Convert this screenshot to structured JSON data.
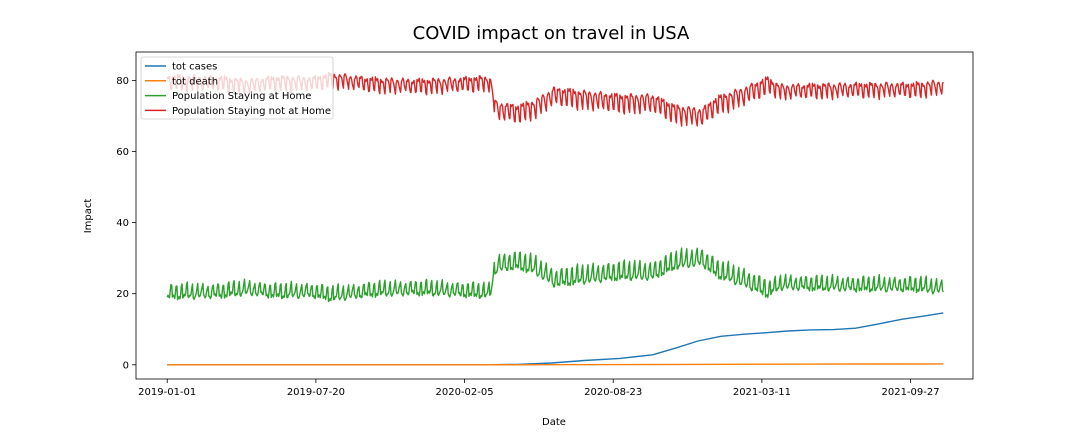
{
  "chart_data": {
    "type": "line",
    "title": "COVID impact on travel in USA",
    "xlabel": "Date",
    "ylabel": "Impact",
    "x_range": [
      "2019-01-01",
      "2021-11-10"
    ],
    "xlim": [
      "2018-11-20",
      "2021-12-20"
    ],
    "ylim": [
      -4,
      88
    ],
    "x_ticks": [
      "2019-01-01",
      "2019-07-20",
      "2020-02-05",
      "2020-08-23",
      "2021-03-11",
      "2021-09-27"
    ],
    "y_ticks": [
      0,
      20,
      40,
      60,
      80
    ],
    "grid": false,
    "legend_position": "top-left",
    "series": [
      {
        "name": "tot cases",
        "color": "#1f77b4",
        "points": [
          [
            "2019-01-01",
            0
          ],
          [
            "2020-03-01",
            0
          ],
          [
            "2020-04-15",
            0.1
          ],
          [
            "2020-06-01",
            0.5
          ],
          [
            "2020-07-15",
            1.2
          ],
          [
            "2020-09-01",
            1.8
          ],
          [
            "2020-10-15",
            2.8
          ],
          [
            "2020-11-15",
            4.7
          ],
          [
            "2020-12-15",
            6.7
          ],
          [
            "2021-01-15",
            8.0
          ],
          [
            "2021-02-15",
            8.6
          ],
          [
            "2021-03-15",
            9.0
          ],
          [
            "2021-04-15",
            9.5
          ],
          [
            "2021-05-15",
            9.8
          ],
          [
            "2021-06-15",
            9.9
          ],
          [
            "2021-07-15",
            10.3
          ],
          [
            "2021-08-15",
            11.5
          ],
          [
            "2021-09-15",
            12.8
          ],
          [
            "2021-10-15",
            13.7
          ],
          [
            "2021-11-10",
            14.6
          ]
        ]
      },
      {
        "name": "tot death",
        "color": "#ff7f0e",
        "points": [
          [
            "2019-01-01",
            0
          ],
          [
            "2020-03-01",
            0
          ],
          [
            "2020-06-01",
            0.02
          ],
          [
            "2020-12-01",
            0.1
          ],
          [
            "2021-06-01",
            0.2
          ],
          [
            "2021-11-10",
            0.25
          ]
        ]
      },
      {
        "name": "Population Staying at Home",
        "color": "#2ca02c",
        "base": [
          [
            "2019-01-01",
            19.8
          ],
          [
            "2019-03-15",
            20.2
          ],
          [
            "2019-04-20",
            21.0
          ],
          [
            "2019-06-01",
            20.0
          ],
          [
            "2019-07-15",
            20.3
          ],
          [
            "2019-08-10",
            19.2
          ],
          [
            "2019-10-01",
            20.5
          ],
          [
            "2019-12-01",
            21.0
          ],
          [
            "2020-02-01",
            20.5
          ],
          [
            "2020-03-10",
            20.0
          ],
          [
            "2020-03-18",
            27.5
          ],
          [
            "2020-04-15",
            28.5
          ],
          [
            "2020-05-10",
            27.0
          ],
          [
            "2020-06-05",
            23.5
          ],
          [
            "2020-07-15",
            24.5
          ],
          [
            "2020-09-01",
            25.5
          ],
          [
            "2020-10-15",
            25.5
          ],
          [
            "2020-11-15",
            28.5
          ],
          [
            "2020-12-20",
            29.5
          ],
          [
            "2021-01-10",
            26.0
          ],
          [
            "2021-02-15",
            23.5
          ],
          [
            "2021-03-20",
            20.5
          ],
          [
            "2021-04-05",
            22.5
          ],
          [
            "2021-06-01",
            22.2
          ],
          [
            "2021-08-01",
            22.0
          ],
          [
            "2021-10-01",
            22.0
          ],
          [
            "2021-11-10",
            21.2
          ]
        ]
      },
      {
        "name": "Population Staying not at Home",
        "color": "#d62728",
        "base": [
          [
            "2019-01-01",
            80.2
          ],
          [
            "2019-03-15",
            79.8
          ],
          [
            "2019-04-20",
            79.0
          ],
          [
            "2019-06-01",
            80.0
          ],
          [
            "2019-07-15",
            79.7
          ],
          [
            "2019-08-10",
            80.8
          ],
          [
            "2019-10-01",
            79.5
          ],
          [
            "2019-12-01",
            79.0
          ],
          [
            "2020-02-01",
            79.5
          ],
          [
            "2020-03-10",
            80.0
          ],
          [
            "2020-03-18",
            72.5
          ],
          [
            "2020-04-15",
            71.5
          ],
          [
            "2020-05-10",
            73.0
          ],
          [
            "2020-06-05",
            76.5
          ],
          [
            "2020-07-15",
            75.5
          ],
          [
            "2020-09-01",
            74.5
          ],
          [
            "2020-10-15",
            74.5
          ],
          [
            "2020-11-15",
            71.5
          ],
          [
            "2020-12-20",
            70.5
          ],
          [
            "2021-01-10",
            74.0
          ],
          [
            "2021-02-15",
            76.5
          ],
          [
            "2021-03-20",
            79.5
          ],
          [
            "2021-04-05",
            77.5
          ],
          [
            "2021-06-01",
            77.8
          ],
          [
            "2021-08-01",
            78.0
          ],
          [
            "2021-10-01",
            78.0
          ],
          [
            "2021-11-10",
            78.8
          ]
        ]
      }
    ]
  }
}
